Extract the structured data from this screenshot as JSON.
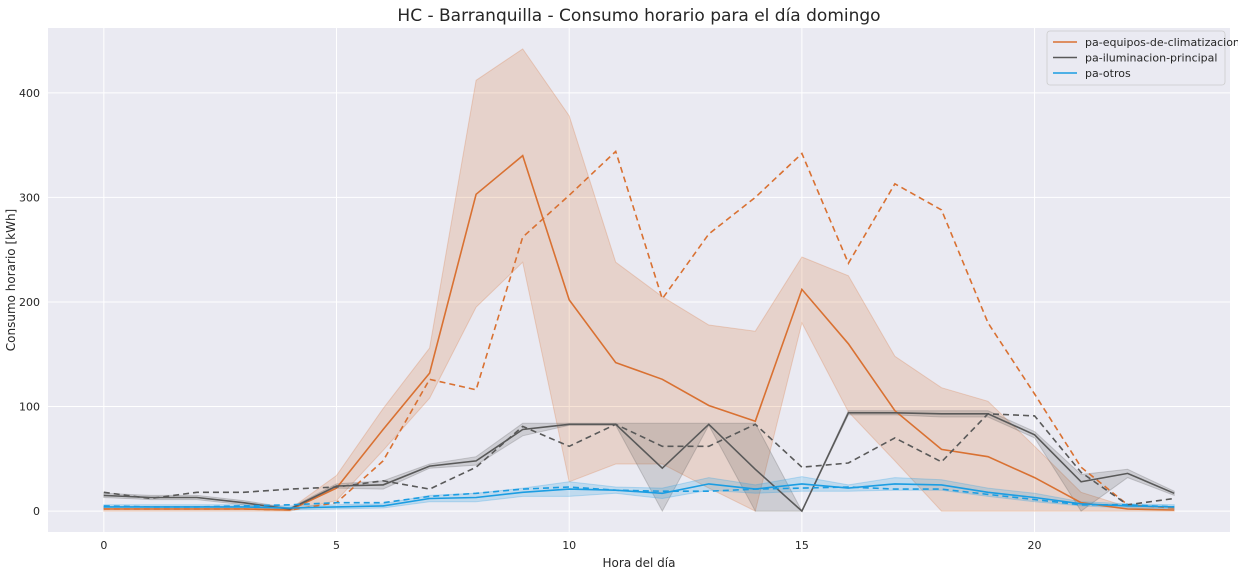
{
  "chart_data": {
    "type": "line",
    "title": "HC - Barranquilla - Consumo horario para el día domingo",
    "xlabel": "Hora del día",
    "ylabel": "Consumo horario [kWh]",
    "xlim": [
      -1.2,
      24.2
    ],
    "ylim": [
      -20,
      462
    ],
    "xticks": [
      0,
      5,
      10,
      15,
      20
    ],
    "yticks": [
      0,
      100,
      200,
      300,
      400
    ],
    "grid": true,
    "legend_position": "top-right",
    "colors": {
      "background": "#eaeaf2",
      "grid": "#ffffff"
    },
    "series": [
      {
        "name": "pa-equipos-de-climatizacion",
        "color": "#d97132",
        "x": [
          0,
          1,
          2,
          3,
          4,
          5,
          6,
          7,
          8,
          9,
          10,
          11,
          12,
          13,
          14,
          15,
          16,
          17,
          18,
          19,
          20,
          21,
          22,
          23
        ],
        "mean": [
          2,
          2,
          2,
          2,
          1,
          22,
          78,
          132,
          303,
          340,
          202,
          142,
          126,
          101,
          86,
          212,
          160,
          96,
          59,
          52,
          32,
          8,
          2,
          1
        ],
        "upper": [
          4,
          4,
          4,
          3,
          2,
          34,
          98,
          156,
          412,
          442,
          378,
          238,
          205,
          178,
          172,
          243,
          225,
          148,
          118,
          105,
          62,
          18,
          4,
          3
        ],
        "lower": [
          0,
          0,
          0,
          0,
          0,
          10,
          58,
          108,
          195,
          238,
          28,
          45,
          45,
          22,
          0,
          180,
          95,
          48,
          0,
          0,
          0,
          0,
          0,
          0
        ],
        "reference": [
          2,
          2,
          2,
          2,
          1,
          8,
          48,
          126,
          116,
          262,
          302,
          344,
          203,
          265,
          300,
          342,
          237,
          313,
          288,
          180,
          112,
          42,
          6,
          3
        ]
      },
      {
        "name": "pa-iluminacion-principal",
        "color": "#595959",
        "x": [
          0,
          1,
          2,
          3,
          4,
          5,
          6,
          7,
          8,
          9,
          10,
          11,
          12,
          13,
          14,
          15,
          16,
          17,
          18,
          19,
          20,
          21,
          22,
          23
        ],
        "mean": [
          15,
          13,
          13,
          8,
          2,
          24,
          25,
          43,
          48,
          78,
          83,
          83,
          41,
          83,
          40,
          0,
          94,
          94,
          93,
          93,
          73,
          28,
          36,
          17
        ],
        "upper": [
          17,
          15,
          15,
          10,
          3,
          26,
          29,
          45,
          52,
          84,
          84,
          84,
          84,
          84,
          84,
          0,
          96,
          96,
          96,
          96,
          76,
          35,
          40,
          19
        ],
        "lower": [
          13,
          11,
          11,
          6,
          1,
          22,
          21,
          41,
          44,
          72,
          82,
          82,
          0,
          82,
          0,
          0,
          92,
          92,
          90,
          90,
          70,
          0,
          32,
          15
        ],
        "reference": [
          18,
          12,
          18,
          18,
          21,
          23,
          29,
          21,
          42,
          81,
          62,
          83,
          62,
          62,
          83,
          42,
          46,
          70,
          47,
          93,
          91,
          37,
          6,
          12
        ]
      },
      {
        "name": "pa-otros",
        "color": "#1b9de2",
        "x": [
          0,
          1,
          2,
          3,
          4,
          5,
          6,
          7,
          8,
          9,
          10,
          11,
          12,
          13,
          14,
          15,
          16,
          17,
          18,
          19,
          20,
          21,
          22,
          23
        ],
        "mean": [
          4,
          4,
          4,
          4,
          3,
          4,
          5,
          12,
          13,
          18,
          21,
          20,
          17,
          26,
          21,
          26,
          22,
          26,
          25,
          18,
          13,
          7,
          5,
          4
        ],
        "upper": [
          6,
          6,
          6,
          6,
          5,
          6,
          7,
          15,
          17,
          22,
          28,
          23,
          22,
          32,
          25,
          33,
          25,
          32,
          30,
          22,
          17,
          9,
          7,
          6
        ],
        "lower": [
          2,
          2,
          2,
          2,
          1,
          2,
          3,
          9,
          9,
          14,
          14,
          17,
          12,
          20,
          17,
          19,
          19,
          20,
          20,
          14,
          9,
          5,
          3,
          2
        ],
        "reference": [
          5,
          4,
          4,
          5,
          6,
          8,
          8,
          14,
          17,
          21,
          23,
          20,
          19,
          19,
          21,
          22,
          23,
          21,
          21,
          16,
          11,
          6,
          6,
          4
        ]
      }
    ]
  }
}
